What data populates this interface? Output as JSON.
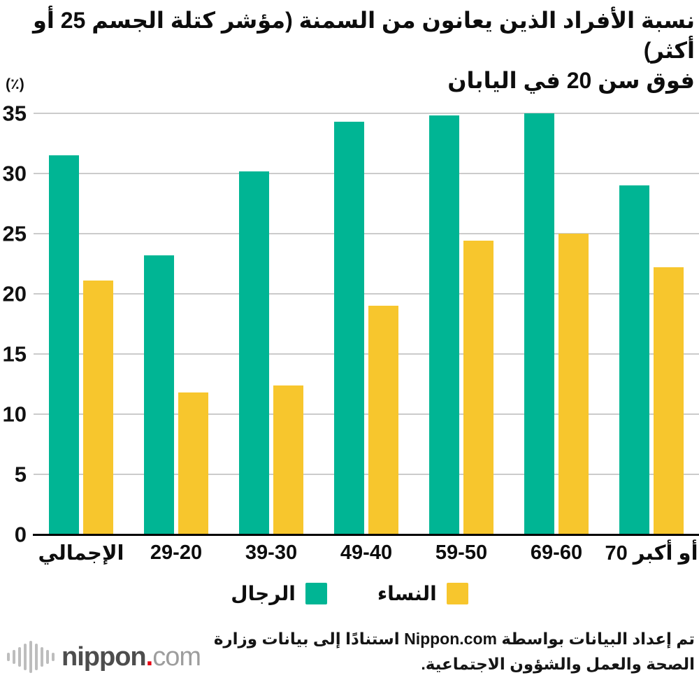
{
  "title": {
    "line1": "نسبة الأفراد الذين يعانون من السمنة (مؤشر كتلة الجسم 25 أو أكثر)",
    "line2": "فوق سن 20 في اليابان"
  },
  "chart_data": {
    "type": "bar",
    "unit_label": "(٪)",
    "categories": [
      "الإجمالي",
      "29-20",
      "39-30",
      "49-40",
      "59-50",
      "69-60",
      "70 أو أكبر"
    ],
    "series": [
      {
        "name": "الرجال",
        "color": "#00B594",
        "values": [
          31.5,
          23.2,
          30.2,
          34.3,
          34.8,
          35.0,
          29.0
        ]
      },
      {
        "name": "النساء",
        "color": "#F7C62D",
        "values": [
          21.1,
          11.8,
          12.4,
          19.0,
          24.4,
          25.0,
          22.2
        ]
      }
    ],
    "ylim": [
      0,
      35
    ],
    "yticks": [
      0,
      5,
      10,
      15,
      20,
      25,
      30,
      35
    ],
    "grid": true,
    "legend_position": "bottom"
  },
  "legend": {
    "men_label": "الرجال",
    "women_label": "النساء"
  },
  "footer": {
    "source_text": "تم إعداد البيانات بواسطة Nippon.com استنادًا إلى بيانات وزارة الصحة والعمل والشؤون الاجتماعية.",
    "logo": {
      "name_bold": "nippon",
      "dot": ".",
      "name_light": "com"
    }
  },
  "colors": {
    "men": "#00B594",
    "women": "#F7C62D",
    "gridline": "#cbcbcb",
    "axis": "#000000",
    "logo_gray": "#4d4d4d",
    "logo_light_gray": "#9d9d9d",
    "logo_red": "#e60012",
    "logo_bars": "#bdbdbd"
  }
}
